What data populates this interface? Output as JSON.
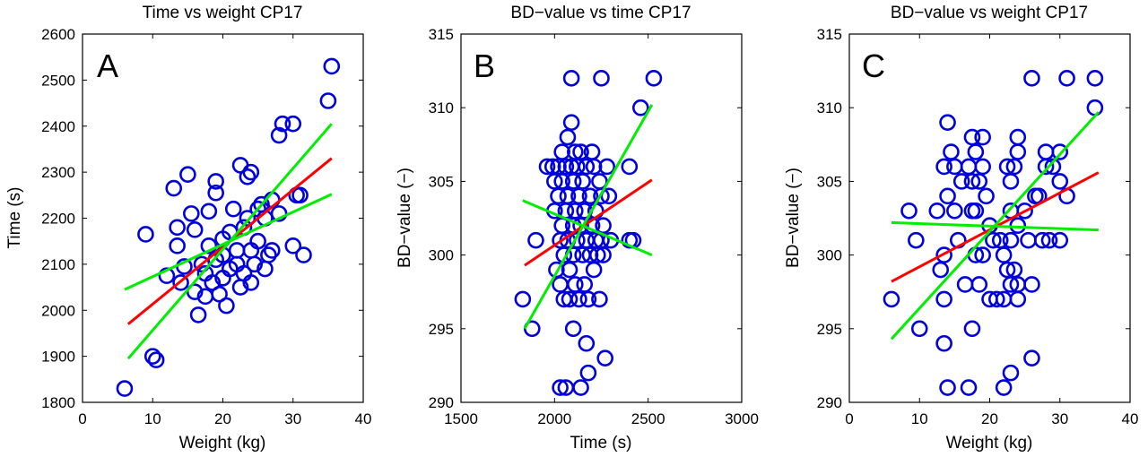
{
  "chart_data": [
    {
      "type": "scatter",
      "panel": "A",
      "title": "Time vs weight CP17",
      "xlabel": "Weight (kg)",
      "ylabel": "Time (s)",
      "xlim": [
        0,
        40
      ],
      "ylim": [
        1800,
        2600
      ],
      "xticks": [
        0,
        10,
        20,
        30,
        40
      ],
      "yticks": [
        1800,
        1900,
        2000,
        2100,
        2200,
        2300,
        2400,
        2500,
        2600
      ],
      "marker_color": "#0000dd",
      "points": [
        [
          6,
          1830
        ],
        [
          9,
          2165
        ],
        [
          10,
          1900
        ],
        [
          10.5,
          1892
        ],
        [
          12,
          2075
        ],
        [
          13,
          2265
        ],
        [
          13.5,
          2140
        ],
        [
          13.5,
          2180
        ],
        [
          14,
          2060
        ],
        [
          14.5,
          2095
        ],
        [
          15,
          2295
        ],
        [
          15.5,
          2210
        ],
        [
          16,
          2040
        ],
        [
          16,
          2175
        ],
        [
          16.5,
          1990
        ],
        [
          17,
          2100
        ],
        [
          17.5,
          2080
        ],
        [
          17.5,
          2030
        ],
        [
          18,
          2140
        ],
        [
          18,
          2215
        ],
        [
          18.5,
          2060
        ],
        [
          19,
          2255
        ],
        [
          19,
          2280
        ],
        [
          19,
          2110
        ],
        [
          19.5,
          2035
        ],
        [
          20,
          2155
        ],
        [
          20,
          2120
        ],
        [
          20,
          2070
        ],
        [
          20.5,
          2010
        ],
        [
          21,
          2090
        ],
        [
          21,
          2170
        ],
        [
          21.5,
          2220
        ],
        [
          22,
          2100
        ],
        [
          22,
          2130
        ],
        [
          22.5,
          2315
        ],
        [
          22.5,
          2050
        ],
        [
          23,
          2180
        ],
        [
          23,
          2080
        ],
        [
          23.5,
          2290
        ],
        [
          23.5,
          2200
        ],
        [
          24,
          2300
        ],
        [
          24,
          2060
        ],
        [
          24,
          2130
        ],
        [
          24.5,
          2100
        ],
        [
          25,
          2220
        ],
        [
          25,
          2150
        ],
        [
          25.5,
          2230
        ],
        [
          26,
          2090
        ],
        [
          26,
          2200
        ],
        [
          26.5,
          2120
        ],
        [
          27,
          2240
        ],
        [
          27,
          2130
        ],
        [
          28,
          2210
        ],
        [
          28,
          2380
        ],
        [
          28.5,
          2405
        ],
        [
          30,
          2405
        ],
        [
          30,
          2140
        ],
        [
          30.5,
          2250
        ],
        [
          31,
          2250
        ],
        [
          31.5,
          2120
        ],
        [
          35,
          2455
        ],
        [
          35.5,
          2530
        ]
      ],
      "lines": [
        {
          "color": "#ff0000",
          "from": [
            6.5,
            1970
          ],
          "to": [
            35.5,
            2330
          ]
        },
        {
          "color": "#00ee00",
          "from": [
            6,
            2045
          ],
          "to": [
            35.5,
            2252
          ]
        },
        {
          "color": "#00ee00",
          "from": [
            6.5,
            1895
          ],
          "to": [
            35.5,
            2405
          ]
        }
      ]
    },
    {
      "type": "scatter",
      "panel": "B",
      "title": "BD−value vs time CP17",
      "xlabel": "Time (s)",
      "ylabel": "BD−value (−)",
      "xlim": [
        1500,
        3000
      ],
      "ylim": [
        290,
        315
      ],
      "xticks": [
        1500,
        2000,
        2500,
        3000
      ],
      "yticks": [
        290,
        295,
        300,
        305,
        310,
        315
      ],
      "marker_color": "#0000dd",
      "points": [
        [
          1830,
          297
        ],
        [
          1880,
          295
        ],
        [
          1900,
          301
        ],
        [
          1960,
          306
        ],
        [
          1990,
          306
        ],
        [
          2000,
          305
        ],
        [
          2000,
          303
        ],
        [
          2010,
          299
        ],
        [
          2020,
          306
        ],
        [
          2020,
          304
        ],
        [
          2030,
          301
        ],
        [
          2030,
          298
        ],
        [
          2030,
          291
        ],
        [
          2040,
          307
        ],
        [
          2040,
          305
        ],
        [
          2040,
          302
        ],
        [
          2050,
          300
        ],
        [
          2050,
          297
        ],
        [
          2060,
          306
        ],
        [
          2060,
          303
        ],
        [
          2060,
          291
        ],
        [
          2070,
          308
        ],
        [
          2070,
          304
        ],
        [
          2070,
          301
        ],
        [
          2080,
          299
        ],
        [
          2080,
          297
        ],
        [
          2090,
          312
        ],
        [
          2090,
          309
        ],
        [
          2090,
          306
        ],
        [
          2100,
          305
        ],
        [
          2100,
          302
        ],
        [
          2100,
          300
        ],
        [
          2100,
          295
        ],
        [
          2110,
          307
        ],
        [
          2110,
          303
        ],
        [
          2110,
          298
        ],
        [
          2120,
          306
        ],
        [
          2120,
          301
        ],
        [
          2130,
          304
        ],
        [
          2130,
          297
        ],
        [
          2140,
          307
        ],
        [
          2140,
          302
        ],
        [
          2140,
          291
        ],
        [
          2150,
          305
        ],
        [
          2150,
          300
        ],
        [
          2160,
          303
        ],
        [
          2160,
          298
        ],
        [
          2170,
          306
        ],
        [
          2170,
          301
        ],
        [
          2170,
          294
        ],
        [
          2180,
          297
        ],
        [
          2180,
          292
        ],
        [
          2190,
          304
        ],
        [
          2190,
          300
        ],
        [
          2200,
          307
        ],
        [
          2200,
          302
        ],
        [
          2210,
          306
        ],
        [
          2210,
          299
        ],
        [
          2220,
          303
        ],
        [
          2220,
          301
        ],
        [
          2230,
          300
        ],
        [
          2240,
          305
        ],
        [
          2240,
          297
        ],
        [
          2250,
          312
        ],
        [
          2250,
          304
        ],
        [
          2250,
          301
        ],
        [
          2260,
          302
        ],
        [
          2260,
          300
        ],
        [
          2270,
          293
        ],
        [
          2280,
          306
        ],
        [
          2290,
          304
        ],
        [
          2300,
          301
        ],
        [
          2400,
          306
        ],
        [
          2400,
          301
        ],
        [
          2420,
          301
        ],
        [
          2460,
          310
        ],
        [
          2530,
          312
        ]
      ],
      "lines": [
        {
          "color": "#ff0000",
          "from": [
            1840,
            299.3
          ],
          "to": [
            2520,
            305.1
          ]
        },
        {
          "color": "#00ee00",
          "from": [
            1830,
            303.7
          ],
          "to": [
            2520,
            300
          ]
        },
        {
          "color": "#00ee00",
          "from": [
            1840,
            295
          ],
          "to": [
            2520,
            310.2
          ]
        }
      ]
    },
    {
      "type": "scatter",
      "panel": "C",
      "title": "BD−value vs weight CP17",
      "xlabel": "Weight (kg)",
      "ylabel": "BD−value (−)",
      "xlim": [
        0,
        40
      ],
      "ylim": [
        290,
        315
      ],
      "xticks": [
        0,
        10,
        20,
        30,
        40
      ],
      "yticks": [
        290,
        295,
        300,
        305,
        310,
        315
      ],
      "marker_color": "#0000dd",
      "points": [
        [
          6,
          297
        ],
        [
          8.5,
          303
        ],
        [
          9.5,
          301
        ],
        [
          10,
          295
        ],
        [
          12.5,
          303
        ],
        [
          13,
          299
        ],
        [
          13.5,
          300
        ],
        [
          13.5,
          306
        ],
        [
          13.5,
          297
        ],
        [
          13.5,
          294
        ],
        [
          14,
          309
        ],
        [
          14,
          304
        ],
        [
          14,
          291
        ],
        [
          14.5,
          307
        ],
        [
          15,
          303
        ],
        [
          15,
          306
        ],
        [
          15.5,
          301
        ],
        [
          16,
          305
        ],
        [
          16.5,
          298
        ],
        [
          17,
          306
        ],
        [
          17,
          291
        ],
        [
          17.5,
          308
        ],
        [
          17.5,
          305
        ],
        [
          17.5,
          303
        ],
        [
          17.5,
          295
        ],
        [
          18,
          307
        ],
        [
          18,
          303
        ],
        [
          18,
          300
        ],
        [
          18.5,
          305
        ],
        [
          18.5,
          298
        ],
        [
          19,
          308
        ],
        [
          19,
          306
        ],
        [
          19,
          300
        ],
        [
          19.5,
          304
        ],
        [
          20,
          302
        ],
        [
          20,
          297
        ],
        [
          20.5,
          301
        ],
        [
          21,
          297
        ],
        [
          21.5,
          301
        ],
        [
          22,
          300
        ],
        [
          22,
          297
        ],
        [
          22,
          291
        ],
        [
          22.5,
          306
        ],
        [
          22.5,
          299
        ],
        [
          23,
          305
        ],
        [
          23,
          303
        ],
        [
          23,
          301
        ],
        [
          23,
          298
        ],
        [
          23,
          292
        ],
        [
          23.5,
          306
        ],
        [
          23.5,
          299
        ],
        [
          24,
          308
        ],
        [
          24,
          307
        ],
        [
          24,
          302
        ],
        [
          24,
          298
        ],
        [
          24,
          297
        ],
        [
          25,
          303
        ],
        [
          25.5,
          301
        ],
        [
          26,
          312
        ],
        [
          26,
          298
        ],
        [
          26,
          293
        ],
        [
          26.5,
          304
        ],
        [
          27,
          304
        ],
        [
          27.5,
          301
        ],
        [
          28,
          307
        ],
        [
          28,
          306
        ],
        [
          28.5,
          301
        ],
        [
          29,
          306
        ],
        [
          30,
          307
        ],
        [
          30,
          305
        ],
        [
          30,
          301
        ],
        [
          31,
          304
        ],
        [
          31,
          312
        ],
        [
          35,
          310
        ],
        [
          35,
          312
        ]
      ],
      "lines": [
        {
          "color": "#ff0000",
          "from": [
            6,
            298.2
          ],
          "to": [
            35.5,
            305.6
          ]
        },
        {
          "color": "#00ee00",
          "from": [
            6,
            302.2
          ],
          "to": [
            35.5,
            301.7
          ]
        },
        {
          "color": "#00ee00",
          "from": [
            6,
            294.3
          ],
          "to": [
            35.5,
            309.7
          ]
        }
      ]
    }
  ]
}
